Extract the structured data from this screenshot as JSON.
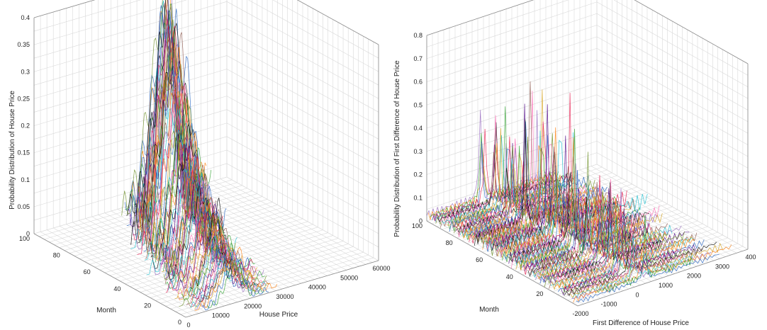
{
  "chart_data": [
    {
      "type": "line",
      "projection": "3d-waterfall",
      "xlabel": "House Price",
      "ylabel": "Month",
      "zlabel": "Probability Distribution of House Price",
      "xlim": [
        0,
        60000
      ],
      "ylim": [
        0,
        100
      ],
      "zlim": [
        0,
        0.4
      ],
      "xticks": [
        "0",
        "10000",
        "20000",
        "30000",
        "40000",
        "50000",
        "60000"
      ],
      "yticks": [
        "0",
        "20",
        "40",
        "60",
        "80",
        "100"
      ],
      "zticks": [
        "0",
        "0.05",
        "0.1",
        "0.15",
        "0.2",
        "0.25",
        "0.3",
        "0.35",
        "0.4"
      ],
      "grid": true,
      "series_count": 100,
      "trend": {
        "month": [
          1,
          10,
          20,
          30,
          40,
          50,
          60,
          70,
          80,
          90,
          100
        ],
        "peak_price": [
          16000,
          17000,
          18500,
          20000,
          22000,
          24000,
          27000,
          30000,
          33000,
          37000,
          41000
        ],
        "peak_density": [
          0.07,
          0.08,
          0.1,
          0.14,
          0.18,
          0.22,
          0.26,
          0.3,
          0.31,
          0.3,
          0.28
        ]
      }
    },
    {
      "type": "line",
      "projection": "3d-waterfall",
      "xlabel": "First Difference of House Price",
      "ylabel": "Month",
      "zlabel": "Probability Distribution of First Difference of House Price",
      "xlim": [
        -2000,
        4000
      ],
      "ylim": [
        0,
        100
      ],
      "zlim": [
        0,
        0.8
      ],
      "xticks": [
        "-2000",
        "-1000",
        "0",
        "1000",
        "2000",
        "3000",
        "400"
      ],
      "yticks": [
        "20",
        "40",
        "60",
        "80",
        "100"
      ],
      "zticks": [
        "0",
        "0.1",
        "0.2",
        "0.3",
        "0.4",
        "0.5",
        "0.6",
        "0.7",
        "0.8"
      ],
      "grid": true,
      "series_count": 100,
      "trend": {
        "month": [
          1,
          10,
          20,
          30,
          40,
          50,
          60,
          70,
          80,
          90,
          100
        ],
        "peak_diff": [
          300,
          250,
          200,
          150,
          100,
          100,
          50,
          0,
          0,
          -50,
          -100
        ],
        "peak_density": [
          0.22,
          0.26,
          0.3,
          0.35,
          0.42,
          0.5,
          0.58,
          0.45,
          0.38,
          0.32,
          0.3
        ]
      }
    }
  ],
  "palette": [
    "#e6194b",
    "#1f5fbf",
    "#2ca02c",
    "#ff7f0e",
    "#9467bd",
    "#d4a017",
    "#17becf",
    "#8c564b",
    "#ff69b4",
    "#000000",
    "#6b8e23",
    "#4b0082"
  ]
}
